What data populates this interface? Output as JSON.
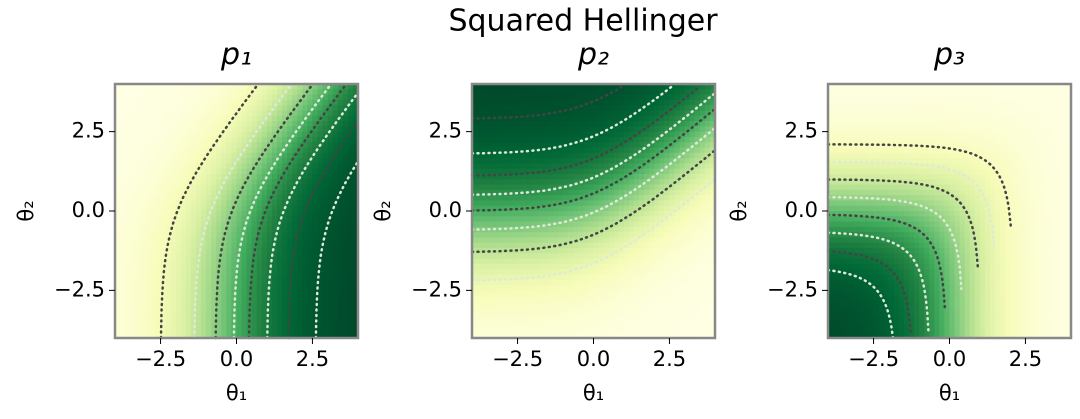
{
  "title": "Squared Hellinger",
  "chart_data": [
    {
      "type": "heatmap",
      "title": "p₁",
      "xlabel": "θ₁",
      "ylabel": "θ₂",
      "xlim": [
        -4,
        4
      ],
      "ylim": [
        -4,
        4
      ],
      "xticks": [
        {
          "value": -2.5,
          "label": "−2.5"
        },
        {
          "value": 0,
          "label": "0.0"
        },
        2.5
      ],
      "yticks": [
        {
          "value": -2.5,
          "label": "−2.5"
        },
        {
          "value": 0,
          "label": "0.0"
        },
        2.5
      ]
    },
    {
      "type": "heatmap",
      "title": "p₂",
      "xlabel": "θ₁",
      "ylabel": "θ₂",
      "xlim": [
        -4,
        4
      ],
      "ylim": [
        -4,
        4
      ],
      "xticks": [
        {
          "value": -2.5,
          "label": "−2.5"
        },
        {
          "value": 0,
          "label": "0.0"
        },
        2.5
      ],
      "yticks": [
        {
          "value": -2.5,
          "label": "−2.5"
        },
        {
          "value": 0,
          "label": "0.0"
        },
        2.5
      ]
    },
    {
      "type": "heatmap",
      "title": "p₃",
      "xlabel": "θ₁",
      "ylabel": "θ₂",
      "xlim": [
        -4,
        4
      ],
      "ylim": [
        -4,
        4
      ],
      "xticks": [
        {
          "value": -2.5,
          "label": "−2.5"
        },
        {
          "value": 0,
          "label": "0.0"
        },
        2.5
      ],
      "yticks": [
        {
          "value": -2.5,
          "label": "−2.5"
        },
        {
          "value": 0,
          "label": "0.0"
        },
        2.5
      ]
    }
  ]
}
